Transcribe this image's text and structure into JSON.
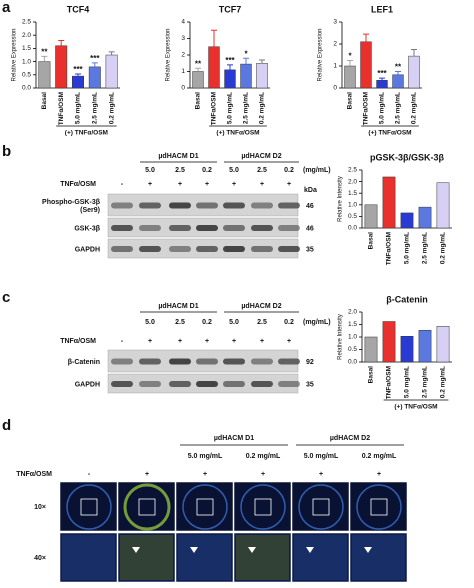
{
  "panel_labels": [
    "a",
    "b",
    "c",
    "d"
  ],
  "chart_data": [
    {
      "type": "bar",
      "title": "TCF4",
      "ylabel": "Relative Expression",
      "categories": [
        "Basal",
        "TNFα/OSM",
        "5.0 mg/mL",
        "2.5 mg/mL",
        "0.2 mg/mL"
      ],
      "values": [
        1.0,
        1.6,
        0.45,
        0.8,
        1.25
      ],
      "errors": [
        0.2,
        0.2,
        0.08,
        0.15,
        0.12
      ],
      "annotations": [
        "**",
        null,
        "***",
        "***",
        null
      ],
      "colors": [
        "#a6a6a6",
        "#e8312d",
        "#2a3bd4",
        "#5a78e0",
        "#d8d0f4"
      ],
      "ylim": [
        0,
        2.5
      ],
      "yticks": [
        {
          "value": 0,
          "label": "0.0"
        },
        {
          "value": 0.5,
          "label": "0.5"
        },
        {
          "value": 1,
          "label": "1.0"
        },
        {
          "value": 1.5,
          "label": "1.5"
        },
        {
          "value": 2,
          "label": "2.0"
        },
        {
          "value": 2.5,
          "label": "2.5"
        }
      ],
      "group_label": "(+) TNFα/OSM"
    },
    {
      "type": "bar",
      "title": "TCF7",
      "ylabel": "Relative Expression",
      "categories": [
        "Basal",
        "TNFα/OSM",
        "5.0 mg/mL",
        "2.5 mg/mL",
        "0.2 mg/mL"
      ],
      "values": [
        1.0,
        2.5,
        1.1,
        1.45,
        1.5
      ],
      "errors": [
        0.2,
        1.0,
        0.3,
        0.35,
        0.2
      ],
      "annotations": [
        "**",
        null,
        "***",
        "*",
        null
      ],
      "colors": [
        "#a6a6a6",
        "#e8312d",
        "#2a3bd4",
        "#5a78e0",
        "#d8d0f4"
      ],
      "ylim": [
        0,
        4
      ],
      "yticks": [
        0,
        1,
        2,
        3,
        4
      ],
      "group_label": "(+) TNFα/OSM"
    },
    {
      "type": "bar",
      "title": "LEF1",
      "ylabel": "Relative Expression",
      "categories": [
        "Basal",
        "TNFα/OSM",
        "5.0 mg/mL",
        "2.5 mg/mL",
        "0.2 mg/mL"
      ],
      "values": [
        1.0,
        2.1,
        0.35,
        0.6,
        1.45
      ],
      "errors": [
        0.25,
        0.35,
        0.1,
        0.15,
        0.3
      ],
      "annotations": [
        "*",
        null,
        "***",
        "**",
        null
      ],
      "colors": [
        "#a6a6a6",
        "#e8312d",
        "#2a3bd4",
        "#5a78e0",
        "#d8d0f4"
      ],
      "ylim": [
        0,
        3
      ],
      "yticks": [
        0,
        1,
        2,
        3
      ],
      "group_label": "(+) TNFα/OSM"
    },
    {
      "type": "bar",
      "title": "pGSK-3β/GSK-3β",
      "ylabel": "Relative Intensity",
      "categories": [
        "Basal",
        "TNFα/OSM",
        "5.0 mg/mL",
        "2.5 mg/mL",
        "0.2 mg/mL"
      ],
      "values": [
        1.0,
        2.2,
        0.65,
        0.9,
        1.95
      ],
      "colors": [
        "#a6a6a6",
        "#e8312d",
        "#2a3bd4",
        "#5a78e0",
        "#d8d0f4"
      ],
      "ylim": [
        0,
        2.5
      ],
      "yticks": [
        {
          "value": 0,
          "label": "0.0"
        },
        {
          "value": 0.5,
          "label": "0.5"
        },
        {
          "value": 1,
          "label": "1.0"
        },
        {
          "value": 1.5,
          "label": "1.5"
        },
        {
          "value": 2,
          "label": "2.0"
        },
        {
          "value": 2.5,
          "label": "2.5"
        }
      ]
    },
    {
      "type": "bar",
      "title": "β-Catenin",
      "ylabel": "Relative Intensity",
      "categories": [
        "Basal",
        "TNFα/OSM",
        "5.0 mg/mL",
        "2.5 mg/mL",
        "0.2 mg/mL"
      ],
      "values": [
        1.0,
        1.62,
        1.03,
        1.27,
        1.43
      ],
      "colors": [
        "#a6a6a6",
        "#e8312d",
        "#2a3bd4",
        "#5a78e0",
        "#d8d0f4"
      ],
      "ylim": [
        0,
        2
      ],
      "yticks": [
        {
          "value": 0,
          "label": "0.0"
        },
        {
          "value": 0.5,
          "label": "0.5"
        },
        {
          "value": 1,
          "label": "1.0"
        },
        {
          "value": 1.5,
          "label": "1.5"
        },
        {
          "value": 2,
          "label": "2.0"
        }
      ],
      "group_label": "(+) TNFα/OSM"
    }
  ],
  "blot_b": {
    "groups": [
      {
        "name": "µdHACM D1",
        "doses": [
          "5.0",
          "2.5",
          "0.2"
        ]
      },
      {
        "name": "µdHACM D2",
        "doses": [
          "5.0",
          "2.5",
          "0.2"
        ]
      }
    ],
    "dose_unit": "(mg/mL)",
    "treatment_label": "TNFα/OSM",
    "treatment": [
      "-",
      "+",
      "+",
      "+",
      "+",
      "+",
      "+"
    ],
    "kda_label": "kDa",
    "rows": [
      {
        "lines": [
          "Phospho-GSK-3β",
          "(Ser9)"
        ],
        "kda": 46
      },
      {
        "lines": [
          "GSK-3β"
        ],
        "kda": 46
      },
      {
        "lines": [
          "GAPDH"
        ],
        "kda": 35
      }
    ]
  },
  "blot_c": {
    "groups": [
      {
        "name": "µdHACM D1",
        "doses": [
          "5.0",
          "2.5",
          "0.2"
        ]
      },
      {
        "name": "µdHACM D2",
        "doses": [
          "5.0",
          "2.5",
          "0.2"
        ]
      }
    ],
    "dose_unit": "(mg/mL)",
    "treatment_label": "TNFα/OSM",
    "treatment": [
      "-",
      "+",
      "+",
      "+",
      "+",
      "+",
      "+"
    ],
    "rows": [
      {
        "lines": [
          "β-Catenin"
        ],
        "kda": 92
      },
      {
        "lines": [
          "GAPDH"
        ],
        "kda": 35
      }
    ]
  },
  "imaging_d": {
    "groups": [
      {
        "name": "µdHACM D1",
        "doses": [
          "5.0 mg/mL",
          "0.2 mg/mL"
        ]
      },
      {
        "name": "µdHACM D2",
        "doses": [
          "5.0 mg/mL",
          "0.2 mg/mL"
        ]
      }
    ],
    "treatment_label": "TNFα/OSM",
    "treatment": [
      "-",
      "+",
      "+",
      "+",
      "+",
      "+"
    ],
    "rows": [
      "10×",
      "40×"
    ]
  }
}
